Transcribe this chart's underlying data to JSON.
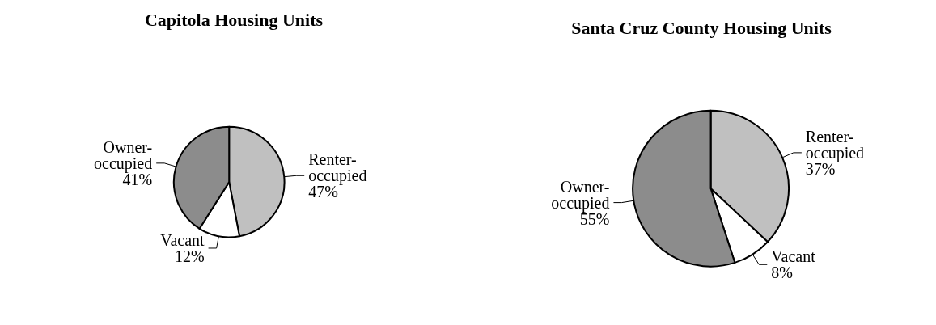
{
  "chart_data": [
    {
      "type": "pie",
      "title": "Capitola Housing Units",
      "categories": [
        "Renter-occupied",
        "Vacant",
        "Owner-occupied"
      ],
      "values": [
        47,
        12,
        41
      ],
      "colors": [
        "#c0c0c0",
        "#ffffff",
        "#8c8c8c"
      ],
      "value_labels": [
        "47%",
        "12%",
        "41%"
      ]
    },
    {
      "type": "pie",
      "title": "Santa Cruz County Housing Units",
      "categories": [
        "Renter-occupied",
        "Vacant",
        "Owner-occupied"
      ],
      "values": [
        37,
        8,
        55
      ],
      "colors": [
        "#c0c0c0",
        "#ffffff",
        "#8c8c8c"
      ],
      "value_labels": [
        "37%",
        "8%",
        "55%"
      ]
    }
  ]
}
